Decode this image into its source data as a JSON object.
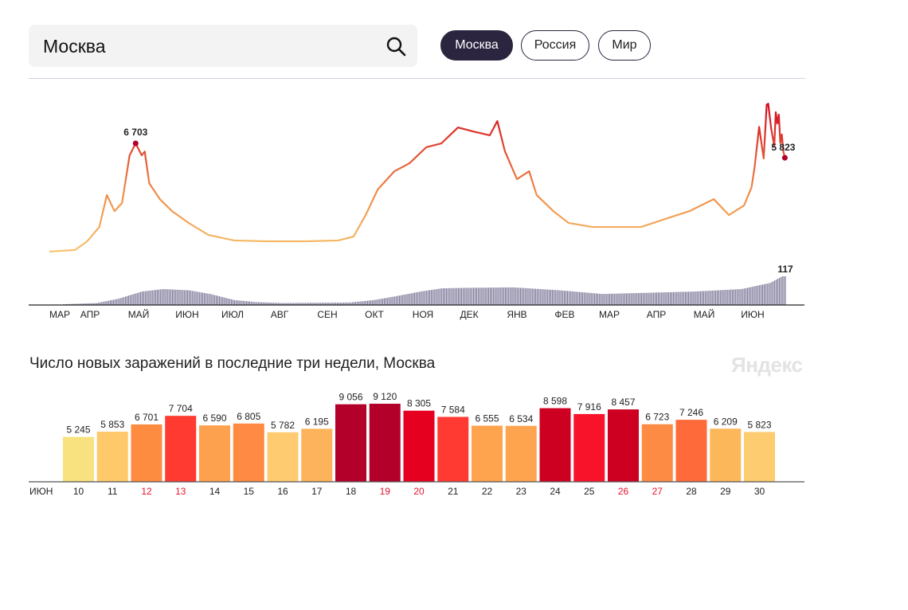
{
  "search": {
    "value": "Москва",
    "icon": "search-icon"
  },
  "region_tabs": [
    {
      "label": "Москва",
      "active": true
    },
    {
      "label": "Россия",
      "active": false
    },
    {
      "label": "Мир",
      "active": false
    }
  ],
  "chart_data": [
    {
      "type": "line",
      "series": [
        {
          "points": [
            [
              "2020-03-01",
              100
            ],
            [
              "2020-03-18",
              200
            ],
            [
              "2020-03-26",
              730
            ],
            [
              "2020-04-03",
              1600
            ],
            [
              "2020-04-08",
              3550
            ],
            [
              "2020-04-13",
              2570
            ],
            [
              "2020-04-18",
              3060
            ],
            [
              "2020-04-23",
              5970
            ],
            [
              "2020-04-27",
              6703
            ],
            [
              "2020-05-01",
              5970
            ],
            [
              "2020-05-03",
              6200
            ],
            [
              "2020-05-06",
              4270
            ],
            [
              "2020-05-13",
              3300
            ],
            [
              "2020-05-21",
              2570
            ],
            [
              "2020-06-01",
              1850
            ],
            [
              "2020-06-14",
              1120
            ],
            [
              "2020-07-01",
              780
            ],
            [
              "2020-07-22",
              730
            ],
            [
              "2020-08-18",
              730
            ],
            [
              "2020-09-08",
              780
            ],
            [
              "2020-09-18",
              1020
            ],
            [
              "2020-09-26",
              2330
            ],
            [
              "2020-10-04",
              3890
            ],
            [
              "2020-10-15",
              5000
            ],
            [
              "2020-10-25",
              5490
            ],
            [
              "2020-11-05",
              6460
            ],
            [
              "2020-11-15",
              6700
            ],
            [
              "2020-11-26",
              7670
            ],
            [
              "2020-12-06",
              7430
            ],
            [
              "2020-12-17",
              7190
            ],
            [
              "2020-12-22",
              8060
            ],
            [
              "2020-12-27",
              6220
            ],
            [
              "2021-01-04",
              4520
            ],
            [
              "2021-01-12",
              5000
            ],
            [
              "2021-01-17",
              3550
            ],
            [
              "2021-01-28",
              2570
            ],
            [
              "2021-02-07",
              1850
            ],
            [
              "2021-02-23",
              1600
            ],
            [
              "2021-03-11",
              1600
            ],
            [
              "2021-03-27",
              1600
            ],
            [
              "2021-04-12",
              2090
            ],
            [
              "2021-04-28",
              2570
            ],
            [
              "2021-05-14",
              3300
            ],
            [
              "2021-05-24",
              2330
            ],
            [
              "2021-06-03",
              2910
            ],
            [
              "2021-06-08",
              4030
            ],
            [
              "2021-06-10",
              5245
            ],
            [
              "2021-06-13",
              7704
            ],
            [
              "2021-06-16",
              5782
            ],
            [
              "2021-06-18",
              9056
            ],
            [
              "2021-06-19",
              9120
            ],
            [
              "2021-06-21",
              7584
            ],
            [
              "2021-06-23",
              6534
            ],
            [
              "2021-06-24",
              8598
            ],
            [
              "2021-06-25",
              7916
            ],
            [
              "2021-06-26",
              8457
            ],
            [
              "2021-06-27",
              6723
            ],
            [
              "2021-06-28",
              7246
            ],
            [
              "2021-06-29",
              6209
            ],
            [
              "2021-06-30",
              5823
            ]
          ]
        }
      ],
      "annotations": [
        {
          "date": "2020-04-27",
          "label": "6 703"
        },
        {
          "date": "2021-06-30",
          "label": "5 823"
        }
      ],
      "colors": {
        "low": "#f6c46e",
        "mid": "#f08a48",
        "high": "#d0021b"
      },
      "ylim": [
        0,
        9500
      ]
    },
    {
      "type": "bar",
      "knots": [
        [
          "2020-03-10",
          3
        ],
        [
          "2020-04-01",
          8
        ],
        [
          "2020-04-15",
          25
        ],
        [
          "2020-05-01",
          55
        ],
        [
          "2020-05-15",
          65
        ],
        [
          "2020-06-01",
          60
        ],
        [
          "2020-06-15",
          45
        ],
        [
          "2020-07-01",
          20
        ],
        [
          "2020-07-15",
          12
        ],
        [
          "2020-08-01",
          8
        ],
        [
          "2020-09-15",
          10
        ],
        [
          "2020-10-01",
          20
        ],
        [
          "2020-10-15",
          35
        ],
        [
          "2020-11-01",
          55
        ],
        [
          "2020-11-15",
          68
        ],
        [
          "2020-12-01",
          70
        ],
        [
          "2021-01-01",
          72
        ],
        [
          "2021-02-01",
          60
        ],
        [
          "2021-03-01",
          45
        ],
        [
          "2021-04-01",
          50
        ],
        [
          "2021-05-01",
          55
        ],
        [
          "2021-06-01",
          65
        ],
        [
          "2021-06-20",
          90
        ],
        [
          "2021-06-28",
          117
        ],
        [
          "2021-06-30",
          117
        ]
      ],
      "annotation": "117",
      "color": "#7d7898",
      "x_ticks": [
        "МАР",
        "АПР",
        "МАЙ",
        "ИЮН",
        "ИЮЛ",
        "АВГ",
        "СЕН",
        "ОКТ",
        "НОЯ",
        "ДЕК",
        "ЯНВ",
        "ФЕВ",
        "МАР",
        "АПР",
        "МАЙ",
        "ИЮН"
      ]
    },
    {
      "type": "bar",
      "title": "Число новых заражений в последние три недели, Москва",
      "month_label": "ИЮН",
      "categories": [
        "10",
        "11",
        "12",
        "13",
        "14",
        "15",
        "16",
        "17",
        "18",
        "19",
        "20",
        "21",
        "22",
        "23",
        "24",
        "25",
        "26",
        "27",
        "28",
        "29",
        "30"
      ],
      "values": [
        5245,
        5853,
        6701,
        7704,
        6590,
        6805,
        5782,
        6195,
        9056,
        9120,
        8305,
        7584,
        6555,
        6534,
        8598,
        7916,
        8457,
        6723,
        7246,
        6209,
        5823
      ],
      "value_labels": [
        "5 245",
        "5 853",
        "6 701",
        "7 704",
        "6 590",
        "6 805",
        "5 782",
        "6 195",
        "9 056",
        "9 120",
        "8 305",
        "7 584",
        "6 555",
        "6 534",
        "8 598",
        "7 916",
        "8 457",
        "6 723",
        "7 246",
        "6 209",
        "5 823"
      ],
      "colors": [
        "#f7e27f",
        "#fdc96b",
        "#fe8c40",
        "#ff3a30",
        "#fea14e",
        "#fe8a43",
        "#fecb70",
        "#fdb35b",
        "#b3002a",
        "#b3002a",
        "#e6001f",
        "#ff3a32",
        "#fea44f",
        "#fea44f",
        "#ce0022",
        "#f8132b",
        "#ce0022",
        "#fe8b44",
        "#ff6a3a",
        "#fdb75b",
        "#fdcb70"
      ],
      "weekend": [
        false,
        false,
        true,
        true,
        false,
        false,
        false,
        false,
        false,
        true,
        true,
        false,
        false,
        false,
        false,
        false,
        true,
        true,
        false,
        false,
        false
      ],
      "weekend_color": "#e8112d"
    }
  ],
  "logo": "Яндекс"
}
